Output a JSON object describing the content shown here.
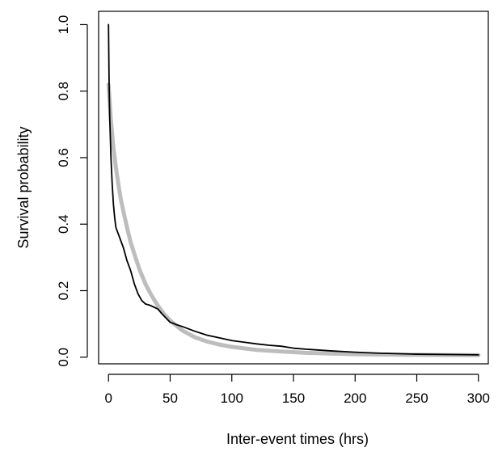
{
  "chart_data": {
    "type": "line",
    "xlabel": "Inter-event times (hrs)",
    "ylabel": "Survival probability",
    "xlim": [
      -8,
      308
    ],
    "ylim": [
      -0.02,
      1.04
    ],
    "x_ticks": [
      0,
      50,
      100,
      150,
      200,
      250,
      300
    ],
    "y_ticks": [
      0.0,
      0.2,
      0.4,
      0.6,
      0.8,
      1.0
    ],
    "x_tick_labels": [
      "0",
      "50",
      "100",
      "150",
      "200",
      "250",
      "300"
    ],
    "y_tick_labels": [
      "0.0",
      "0.2",
      "0.4",
      "0.6",
      "0.8",
      "1.0"
    ],
    "grid": false,
    "legend": "none",
    "series": [
      {
        "color": "#bdbdbd",
        "style": "thick",
        "x": [
          0,
          2,
          4,
          6,
          8,
          10,
          12,
          15,
          18,
          21,
          25,
          30,
          35,
          40,
          45,
          50,
          60,
          70,
          80,
          90,
          100,
          120,
          140,
          160,
          180,
          200,
          220,
          250,
          280,
          300
        ],
        "y": [
          0.82,
          0.71,
          0.63,
          0.57,
          0.52,
          0.475,
          0.44,
          0.39,
          0.345,
          0.31,
          0.265,
          0.22,
          0.185,
          0.155,
          0.13,
          0.11,
          0.08,
          0.06,
          0.047,
          0.038,
          0.031,
          0.022,
          0.017,
          0.013,
          0.011,
          0.009,
          0.008,
          0.007,
          0.006,
          0.006
        ]
      },
      {
        "color": "#000000",
        "style": "thin",
        "x": [
          0,
          0.5,
          1,
          2,
          3,
          4,
          5,
          6,
          8,
          10,
          12,
          15,
          18,
          21,
          24,
          27,
          30,
          33,
          36,
          40,
          43,
          46,
          50,
          55,
          60,
          65,
          70,
          75,
          80,
          90,
          100,
          110,
          120,
          130,
          140,
          150,
          160,
          180,
          200,
          220,
          250,
          280,
          300
        ],
        "y": [
          1.0,
          0.82,
          0.72,
          0.6,
          0.52,
          0.46,
          0.42,
          0.39,
          0.37,
          0.35,
          0.33,
          0.29,
          0.26,
          0.22,
          0.19,
          0.17,
          0.16,
          0.157,
          0.152,
          0.145,
          0.132,
          0.12,
          0.105,
          0.098,
          0.092,
          0.085,
          0.078,
          0.072,
          0.066,
          0.058,
          0.05,
          0.045,
          0.04,
          0.036,
          0.033,
          0.027,
          0.024,
          0.019,
          0.015,
          0.012,
          0.009,
          0.008,
          0.007
        ]
      }
    ]
  }
}
